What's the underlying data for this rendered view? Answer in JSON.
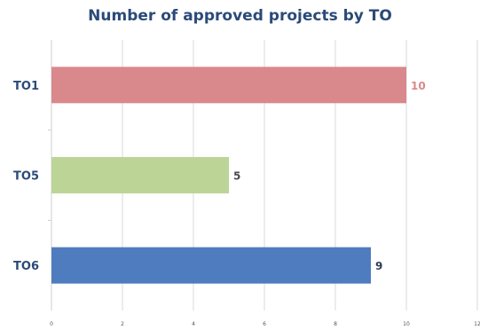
{
  "chart_data": {
    "type": "bar",
    "orientation": "horizontal",
    "title": "Number of approved projects by TO",
    "categories": [
      "TO1",
      "TO5",
      "TO6"
    ],
    "values": [
      10,
      5,
      9
    ],
    "colors": [
      "#d9888c",
      "#bcd597",
      "#4f7cbf"
    ],
    "value_label_colors": [
      "#d9888c",
      "#4a4a4a",
      "#2e3b55"
    ],
    "xlim": [
      0,
      12
    ],
    "xticks": [
      "0",
      "2",
      "4",
      "6",
      "8",
      "10",
      "12"
    ],
    "grid": true,
    "legend": "none",
    "xlabel": "",
    "ylabel": ""
  }
}
